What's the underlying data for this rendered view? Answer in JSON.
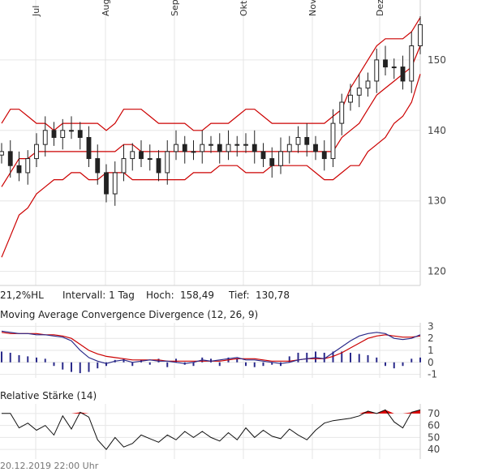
{
  "chart_data": [
    {
      "type": "candlestick",
      "name": "price",
      "x_labels": [
        "Jul",
        "Aug",
        "Sep",
        "Okt",
        "Nov",
        "Dez"
      ],
      "ylim": [
        118,
        158.5
      ],
      "y_ticks": [
        120,
        130,
        140,
        150
      ],
      "high": 158.49,
      "low": 130.78,
      "overlays": [
        "Bollinger bands (upper, middle, lower)"
      ],
      "bollinger": {
        "upper": [
          141,
          143,
          143,
          142,
          141,
          141,
          140,
          141,
          141,
          141,
          141,
          141,
          140,
          141,
          143,
          143,
          143,
          142,
          141,
          141,
          141,
          141,
          140,
          140,
          141,
          141,
          141,
          142,
          143,
          143,
          142,
          141,
          141,
          141,
          141,
          141,
          141,
          141,
          142,
          143,
          146,
          148,
          150,
          152,
          153,
          153,
          153,
          154,
          156
        ],
        "middle": [
          132,
          134,
          136,
          136,
          137,
          137,
          137,
          137,
          137,
          137,
          137,
          137,
          137,
          137,
          138,
          138,
          137,
          137,
          137,
          137,
          137,
          137,
          137,
          137,
          137,
          137,
          137,
          137,
          137,
          137,
          137,
          137,
          137,
          137,
          137,
          137,
          137,
          137,
          137,
          139,
          140,
          141,
          143,
          145,
          146,
          147,
          148,
          149,
          152
        ],
        "lower": [
          122,
          125,
          128,
          129,
          131,
          132,
          133,
          133,
          134,
          134,
          133,
          133,
          134,
          134,
          134,
          133,
          133,
          133,
          133,
          133,
          133,
          133,
          134,
          134,
          134,
          135,
          135,
          135,
          134,
          134,
          134,
          135,
          135,
          135,
          135,
          135,
          134,
          133,
          133,
          134,
          135,
          135,
          137,
          138,
          139,
          141,
          142,
          144,
          148
        ]
      },
      "closes": [
        137,
        135,
        134,
        136,
        138,
        140,
        139,
        140,
        140,
        139,
        136,
        134,
        131,
        134,
        136,
        137,
        136,
        136,
        134,
        137,
        138,
        137,
        137,
        138,
        138,
        137,
        138,
        138,
        138,
        137,
        136,
        135,
        137,
        138,
        139,
        138,
        137,
        136,
        141,
        144,
        145,
        146,
        147,
        150,
        149,
        149,
        147,
        152,
        155
      ]
    },
    {
      "type": "line",
      "name": "macd",
      "ylim": [
        -1.3,
        3.3
      ],
      "y_ticks": [
        3,
        2,
        1,
        0,
        -1
      ],
      "macd": [
        2.6,
        2.5,
        2.4,
        2.4,
        2.3,
        2.3,
        2.2,
        2.1,
        1.8,
        1.0,
        0.4,
        0.1,
        -0.1,
        0.1,
        0.2,
        0.0,
        0.1,
        0.2,
        0.1,
        0.1,
        0.0,
        -0.1,
        0.0,
        0.2,
        0.1,
        0.2,
        0.3,
        0.4,
        0.2,
        0.2,
        0.1,
        0.0,
        -0.1,
        0.0,
        0.2,
        0.3,
        0.4,
        0.3,
        0.8,
        1.3,
        1.8,
        2.2,
        2.4,
        2.5,
        2.4,
        2.0,
        1.9,
        2.0,
        2.3
      ],
      "signal": [
        2.5,
        2.4,
        2.4,
        2.4,
        2.4,
        2.3,
        2.3,
        2.2,
        2.0,
        1.5,
        1.0,
        0.7,
        0.5,
        0.4,
        0.3,
        0.2,
        0.2,
        0.2,
        0.2,
        0.1,
        0.1,
        0.1,
        0.1,
        0.1,
        0.1,
        0.1,
        0.2,
        0.3,
        0.3,
        0.3,
        0.2,
        0.1,
        0.1,
        0.1,
        0.2,
        0.3,
        0.3,
        0.3,
        0.5,
        0.8,
        1.2,
        1.6,
        2.0,
        2.2,
        2.3,
        2.2,
        2.1,
        2.1,
        2.2
      ],
      "histogram": [
        0.9,
        0.8,
        0.6,
        0.5,
        0.4,
        0.3,
        -0.3,
        -0.6,
        -0.8,
        -0.9,
        -0.8,
        -0.5,
        -0.3,
        0.2,
        0.3,
        -0.3,
        0.2,
        -0.2,
        0.3,
        -0.4,
        0.3,
        -0.2,
        -0.3,
        0.4,
        0.3,
        -0.3,
        0.4,
        0.3,
        -0.3,
        -0.4,
        -0.3,
        -0.2,
        -0.3,
        0.5,
        0.8,
        0.8,
        0.9,
        0.8,
        0.9,
        0.9,
        0.8,
        0.7,
        0.6,
        0.4,
        -0.3,
        -0.5,
        -0.3,
        0.3,
        0.4
      ]
    },
    {
      "type": "line",
      "name": "rsi",
      "ylim": [
        32,
        78
      ],
      "y_ticks": [
        70,
        60,
        50,
        40
      ],
      "threshold": 70,
      "values": [
        70,
        70,
        58,
        62,
        56,
        60,
        52,
        68,
        57,
        71,
        67,
        48,
        40,
        50,
        42,
        45,
        52,
        49,
        46,
        52,
        48,
        55,
        50,
        55,
        50,
        47,
        54,
        48,
        58,
        50,
        56,
        51,
        49,
        57,
        52,
        48,
        56,
        62,
        64,
        65,
        66,
        68,
        72,
        70,
        73,
        63,
        58,
        71,
        73
      ]
    }
  ],
  "months": [
    "Jul",
    "Aug",
    "Sep",
    "Okt",
    "Nov",
    "Dez"
  ],
  "info_bar": {
    "range": "21,2%HL",
    "interval": "Intervall: 1 Tag",
    "high_label": "Hoch:",
    "high_value": "158,49",
    "low_label": "Tief:",
    "low_value": "130,78"
  },
  "macd_title": "Moving Average Convergence Divergence (12, 26, 9)",
  "rsi_title": "Relative Stärke (14)",
  "footer": "20.12.2019 22:00 Uhr",
  "colors": {
    "grid": "#e6e6e6",
    "candle": "#222222",
    "band": "#cc0000",
    "macd_line": "#2a2a8a",
    "signal_line": "#cc0000",
    "histogram": "#2a2a8a",
    "rsi_line": "#111111",
    "rsi_fill": "#dd0000"
  }
}
